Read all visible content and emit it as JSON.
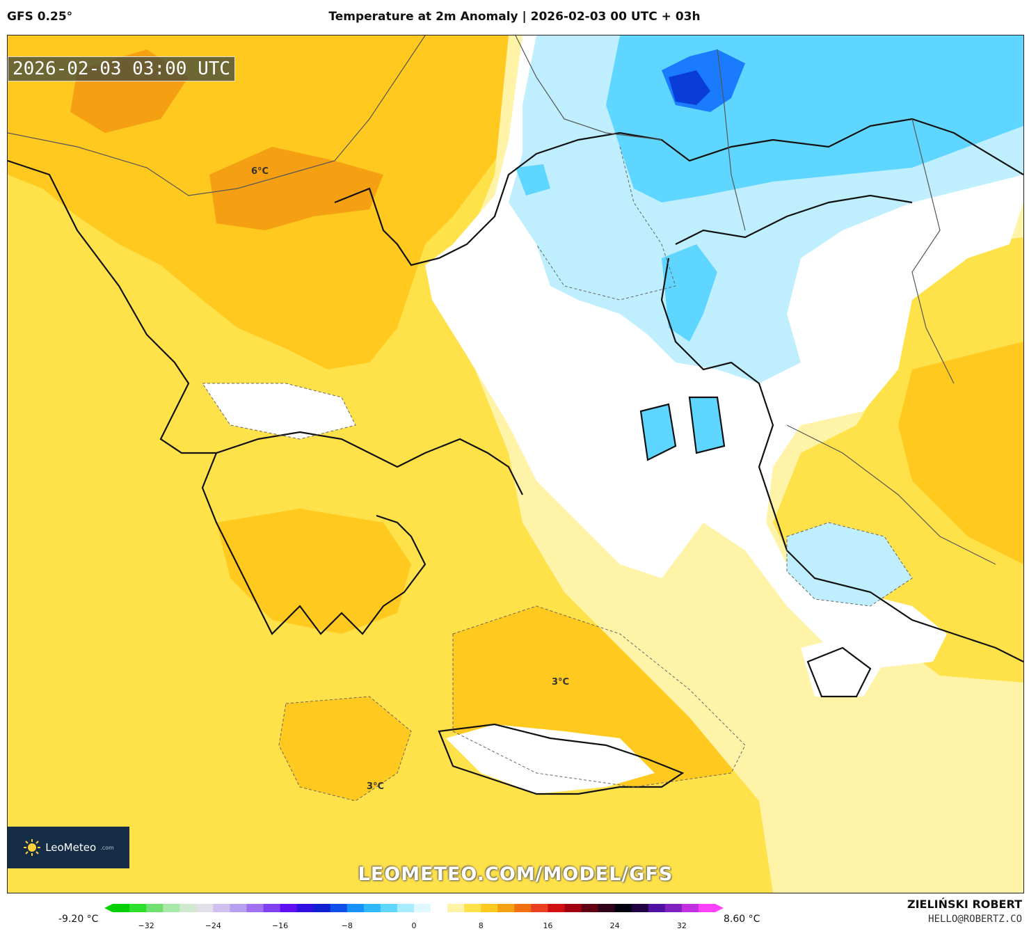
{
  "header": {
    "model": "GFS 0.25°",
    "title": "Temperature at 2m Anomaly | 2026-02-03 00 UTC + 03h"
  },
  "map": {
    "valid_time": "2026-02-03 03:00 UTC",
    "watermark": "LEOMETEO.COM/MODEL/GFS",
    "labels": [
      "6°C",
      "3°C",
      "3°C"
    ],
    "colors": {
      "warm_base": "#ffe14a",
      "warm_orange": "#ffc91f",
      "dark_orange": "#f5a012",
      "light_yellow": "#fff3a8",
      "neutral_white": "#ffffff",
      "cold_light_blue": "#bfefff",
      "cold_blue": "#5fd6ff",
      "cold_deep": "#1a7bff",
      "coast": "#111111"
    }
  },
  "logo": {
    "name": "LeoMeteo",
    "suffix": ".com"
  },
  "legend": {
    "min_label": "-9.20 °C",
    "max_label": "8.60 °C",
    "ticks": [
      "−32",
      "−24",
      "−16",
      "−8",
      "0",
      "8",
      "16",
      "24",
      "32"
    ],
    "tick_values": [
      -32,
      -24,
      -16,
      -8,
      0,
      8,
      16,
      24,
      32
    ],
    "range": [
      -36,
      36
    ],
    "colors": [
      "#00d000",
      "#2ee02e",
      "#70e070",
      "#a8e8a8",
      "#d0e8d0",
      "#e0e0e8",
      "#d0c0f0",
      "#b8a0f0",
      "#a070f0",
      "#8040f0",
      "#6010f0",
      "#3010e0",
      "#1020d0",
      "#1050e8",
      "#1890ff",
      "#30b8ff",
      "#5fd6ff",
      "#a8ecff",
      "#e0f8ff",
      "#ffffff",
      "#fff3a8",
      "#ffe14a",
      "#ffc91f",
      "#f5a012",
      "#f07010",
      "#e84020",
      "#d01010",
      "#a00010",
      "#600010",
      "#300018",
      "#000010",
      "#200040",
      "#5010a0",
      "#8020c0",
      "#c030e0",
      "#ff40ff"
    ]
  },
  "author": {
    "name": "ZIELIŃSKI ROBERT",
    "email": "HELLO@ROBERTZ.CO"
  }
}
